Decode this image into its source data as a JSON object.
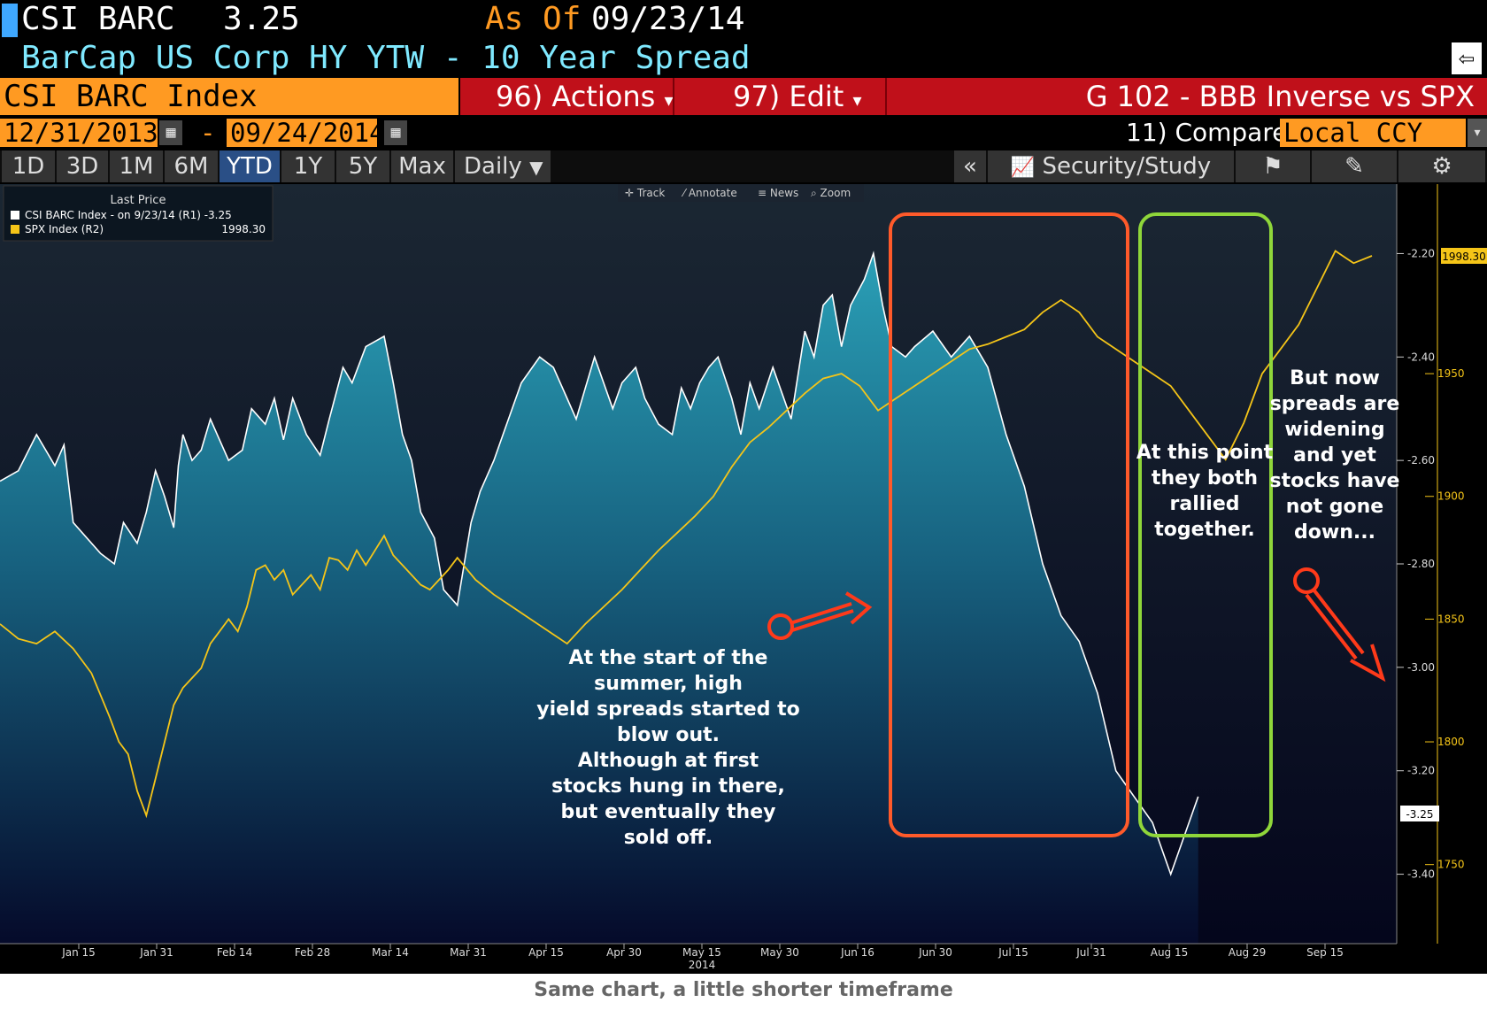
{
  "header": {
    "ticker": "CSI BARC",
    "last_price": "3.25",
    "as_of_label": "As Of",
    "as_of_date": "09/23/14",
    "title": "BarCap US Corp HY YTW - 10 Year Spread",
    "back_icon": "back-arrow-icon"
  },
  "toolbar": {
    "index_label": "CSI BARC Index",
    "actions_label": "96) Actions",
    "edit_label": "97) Edit",
    "chart_name": "G 102 - BBB Inverse vs SPX",
    "start_date": "12/31/2013",
    "date_sep": "-",
    "end_date": "09/24/2014",
    "compare_label": "11) Compare",
    "currency": "Local CCY"
  },
  "tabs": [
    "1D",
    "3D",
    "1M",
    "6M",
    "YTD",
    "1Y",
    "5Y",
    "Max"
  ],
  "selected_tab": "YTD",
  "frequency": "Daily",
  "right_tools": {
    "collapse": "«",
    "security_study": "Security/Study",
    "icons": [
      "chart-icon",
      "annotate-pencil-icon",
      "gear-icon"
    ]
  },
  "chart_tools": [
    "Track",
    "Annotate",
    "News",
    "Zoom"
  ],
  "legend": {
    "header": "Last Price",
    "items": [
      {
        "label": "CSI BARC Index -  on 9/23/14  (R1) -3.25",
        "value": "",
        "color": "#ffffff"
      },
      {
        "label": "SPX Index  (R2)",
        "value": "1998.30",
        "color": "#f5c518"
      }
    ]
  },
  "chart_data": {
    "type": "line",
    "x_axis_labels": [
      "Jan 15",
      "Jan 31",
      "Feb 14",
      "Feb 28",
      "Mar 14",
      "Mar 31",
      "Apr 15",
      "Apr 30",
      "May 15",
      "May 30",
      "Jun 16",
      "Jun 30",
      "Jul 15",
      "Jul 31",
      "Aug 15",
      "Aug 29",
      "Sep 15"
    ],
    "x_axis_year": "2014",
    "r1_axis": {
      "ticks": [
        "-2.20",
        "-2.40",
        "-2.60",
        "-2.80",
        "-3.00",
        "-3.20",
        "-3.40"
      ],
      "range": [
        -3.5,
        -2.1
      ]
    },
    "r2_axis": {
      "ticks": [
        "1950",
        "1900",
        "1850",
        "1800",
        "1750"
      ],
      "range": [
        1725,
        2020
      ]
    },
    "last_labels": {
      "spx": "1998.30",
      "barc": "-3.25"
    },
    "series": [
      {
        "name": "CSI BARC Index",
        "axis": "R1",
        "color": "#ffffff",
        "x": [
          0,
          4,
          8,
          12,
          14,
          16,
          19,
          22,
          25,
          27,
          30,
          32,
          34,
          36,
          38,
          39,
          40,
          42,
          44,
          46,
          50,
          53,
          55,
          58,
          60,
          62,
          64,
          67,
          70,
          72,
          75,
          77,
          80,
          84,
          86,
          88,
          90,
          92,
          95,
          97,
          100,
          103,
          105,
          108,
          110,
          114,
          118,
          121,
          124,
          126,
          128,
          130,
          132,
          134,
          136,
          139,
          141,
          144,
          147,
          149,
          151,
          153,
          155,
          157,
          160,
          162,
          164,
          166,
          169,
          171,
          173,
          176,
          178,
          180,
          182,
          184,
          186,
          189,
          191,
          193,
          195,
          198,
          200,
          204,
          208,
          212,
          216,
          220,
          224,
          228,
          232,
          236,
          240,
          244,
          248,
          252,
          256,
          262
        ],
        "y": [
          -2.64,
          -2.62,
          -2.55,
          -2.61,
          -2.57,
          -2.72,
          -2.75,
          -2.78,
          -2.8,
          -2.72,
          -2.76,
          -2.7,
          -2.62,
          -2.67,
          -2.73,
          -2.61,
          -2.55,
          -2.6,
          -2.58,
          -2.52,
          -2.6,
          -2.58,
          -2.5,
          -2.53,
          -2.48,
          -2.56,
          -2.48,
          -2.55,
          -2.59,
          -2.52,
          -2.42,
          -2.45,
          -2.38,
          -2.36,
          -2.45,
          -2.55,
          -2.6,
          -2.7,
          -2.75,
          -2.85,
          -2.88,
          -2.72,
          -2.66,
          -2.6,
          -2.55,
          -2.45,
          -2.4,
          -2.42,
          -2.48,
          -2.52,
          -2.46,
          -2.4,
          -2.45,
          -2.5,
          -2.45,
          -2.42,
          -2.48,
          -2.53,
          -2.55,
          -2.46,
          -2.5,
          -2.45,
          -2.42,
          -2.4,
          -2.48,
          -2.55,
          -2.45,
          -2.5,
          -2.42,
          -2.47,
          -2.52,
          -2.35,
          -2.4,
          -2.3,
          -2.28,
          -2.38,
          -2.3,
          -2.25,
          -2.2,
          -2.3,
          -2.38,
          -2.4,
          -2.38,
          -2.35,
          -2.4,
          -2.36,
          -2.42,
          -2.55,
          -2.65,
          -2.8,
          -2.9,
          -2.95,
          -3.05,
          -3.2,
          -3.25,
          -3.3,
          -3.4,
          -3.25
        ]
      },
      {
        "name": "SPX Index",
        "axis": "R2",
        "color": "#f5c518",
        "x": [
          0,
          4,
          8,
          12,
          16,
          20,
          24,
          26,
          28,
          30,
          32,
          34,
          36,
          38,
          40,
          42,
          44,
          46,
          48,
          50,
          52,
          54,
          56,
          58,
          60,
          62,
          64,
          66,
          68,
          70,
          72,
          74,
          76,
          78,
          80,
          82,
          84,
          86,
          88,
          90,
          92,
          94,
          96,
          98,
          100,
          104,
          108,
          112,
          116,
          120,
          124,
          128,
          132,
          136,
          140,
          144,
          148,
          152,
          156,
          160,
          164,
          168,
          172,
          176,
          180,
          184,
          188,
          192,
          196,
          200,
          204,
          208,
          212,
          216,
          220,
          224,
          228,
          232,
          236,
          240,
          244,
          248,
          252,
          256,
          260,
          264,
          268,
          272,
          276,
          280,
          284,
          288,
          292,
          296,
          300
        ],
        "y": [
          1848,
          1842,
          1840,
          1845,
          1838,
          1828,
          1810,
          1800,
          1795,
          1780,
          1770,
          1785,
          1800,
          1815,
          1822,
          1826,
          1830,
          1840,
          1845,
          1850,
          1845,
          1855,
          1870,
          1872,
          1866,
          1870,
          1860,
          1864,
          1868,
          1862,
          1875,
          1874,
          1870,
          1878,
          1872,
          1878,
          1884,
          1876,
          1872,
          1868,
          1864,
          1862,
          1866,
          1870,
          1875,
          1866,
          1860,
          1855,
          1850,
          1845,
          1840,
          1848,
          1855,
          1862,
          1870,
          1878,
          1885,
          1892,
          1900,
          1912,
          1922,
          1928,
          1935,
          1942,
          1948,
          1950,
          1945,
          1935,
          1940,
          1945,
          1950,
          1955,
          1960,
          1962,
          1965,
          1968,
          1975,
          1980,
          1975,
          1965,
          1960,
          1955,
          1950,
          1945,
          1935,
          1925,
          1915,
          1930,
          1950,
          1960,
          1970,
          1985,
          2000,
          1995,
          1998
        ]
      }
    ]
  },
  "annotations": [
    {
      "text": "At the start of the summer, high yield spreads started to blow out. Although at first stocks hung in there, but eventually they sold off."
    },
    {
      "text": "At this point they both rallied together."
    },
    {
      "text": "But now spreads are widening and yet stocks have not gone down..."
    }
  ],
  "colors": {
    "orange_box": "#ff5a2a",
    "green_box": "#8fd63a",
    "arrow": "#ff3a1a"
  },
  "caption": "Same chart, a little shorter timeframe"
}
